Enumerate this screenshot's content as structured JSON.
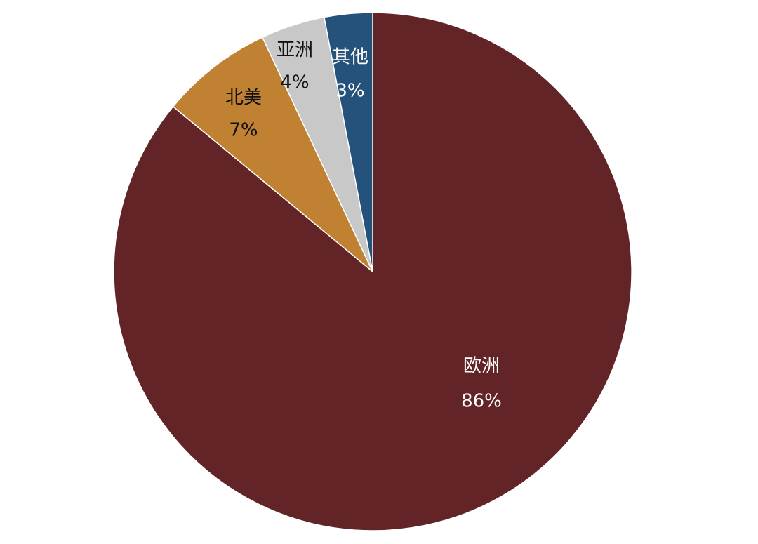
{
  "chart_data": {
    "type": "pie",
    "categories": [
      "欧洲",
      "北美",
      "亚洲",
      "其他"
    ],
    "values": [
      86,
      7,
      4,
      3
    ],
    "value_labels": [
      "86%",
      "7%",
      "4%",
      "3%"
    ],
    "colors": [
      "#622427",
      "#c08232",
      "#c8c8c8",
      "#24527a"
    ]
  }
}
